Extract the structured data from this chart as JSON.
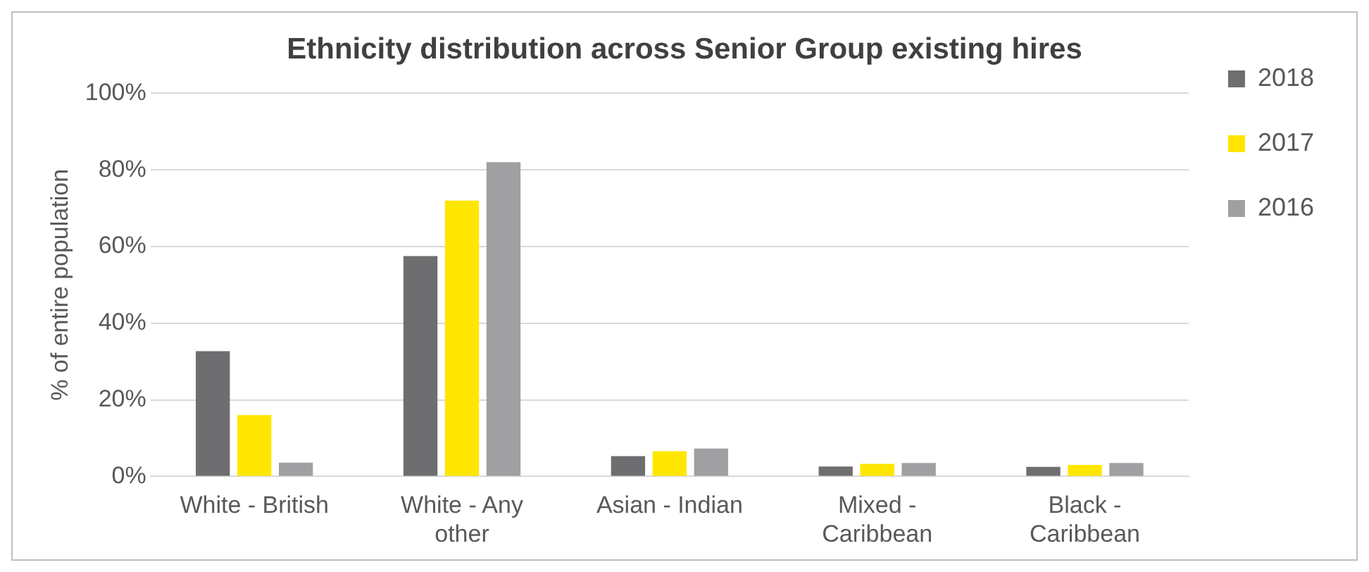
{
  "chart_data": {
    "type": "bar",
    "title": "Ethnicity distribution across Senior Group existing hires",
    "ylabel": "% of entire population",
    "categories": [
      "White - British",
      "White - Any other",
      "Asian - Indian",
      "Mixed - Caribbean",
      "Black - Caribbean"
    ],
    "series": [
      {
        "name": "2018",
        "color": "#6e6e70",
        "values": [
          32.7,
          57.5,
          5.3,
          2.6,
          2.5
        ]
      },
      {
        "name": "2017",
        "color": "#ffe600",
        "values": [
          16,
          72,
          6.6,
          3.3,
          3
        ]
      },
      {
        "name": "2016",
        "color": "#a0a0a2",
        "values": [
          3.6,
          82,
          7.3,
          3.5,
          3.5
        ]
      }
    ],
    "ylim": [
      0,
      100
    ],
    "yticks": [
      {
        "value": 0,
        "label": "0%"
      },
      {
        "value": 20,
        "label": "20%"
      },
      {
        "value": 40,
        "label": "40%"
      },
      {
        "value": 60,
        "label": "60%"
      },
      {
        "value": 80,
        "label": "80%"
      },
      {
        "value": 100,
        "label": "100%"
      }
    ],
    "grid": "y",
    "legend": "top right"
  }
}
